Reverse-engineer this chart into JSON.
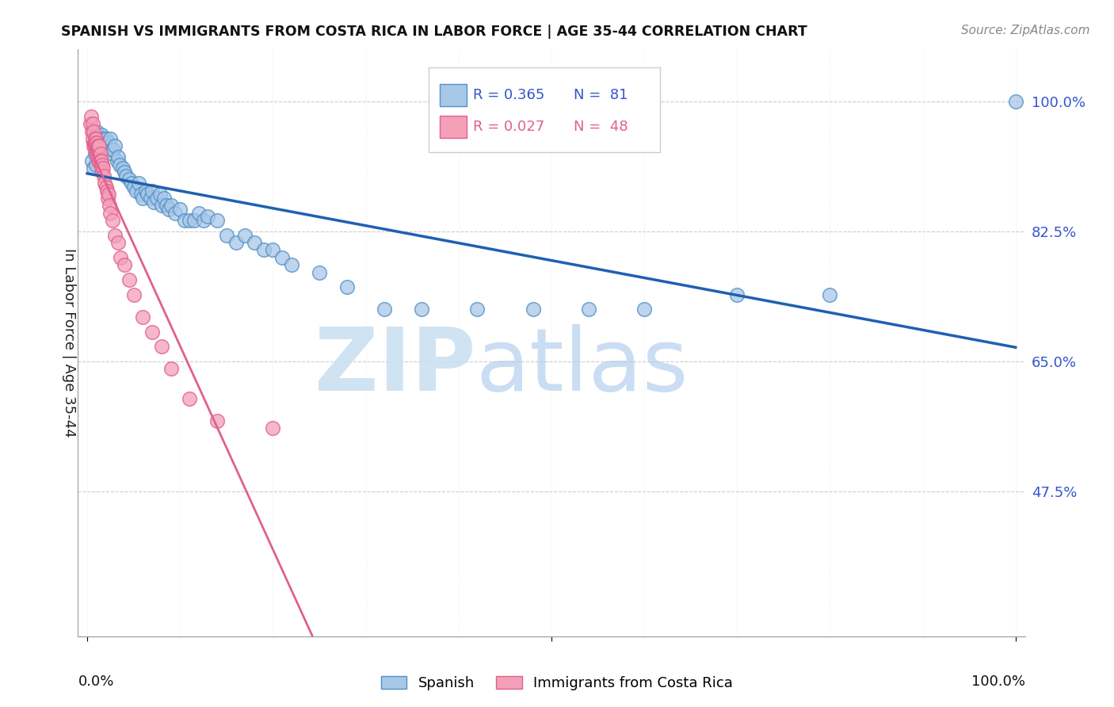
{
  "title": "SPANISH VS IMMIGRANTS FROM COSTA RICA IN LABOR FORCE | AGE 35-44 CORRELATION CHART",
  "source": "Source: ZipAtlas.com",
  "ylabel": "In Labor Force | Age 35-44",
  "ytick_values": [
    1.0,
    0.825,
    0.65,
    0.475
  ],
  "ytick_labels": [
    "100.0%",
    "82.5%",
    "65.0%",
    "47.5%"
  ],
  "xlim": [
    -0.01,
    1.01
  ],
  "ylim": [
    0.28,
    1.07
  ],
  "legend_r1": "R = 0.365",
  "legend_n1": "N =  81",
  "legend_r2": "R = 0.027",
  "legend_n2": "N =  48",
  "color_blue": "#a8c8e8",
  "color_pink": "#f4a0b8",
  "edge_blue": "#5090c8",
  "edge_pink": "#e06090",
  "trendline_blue_color": "#2060b0",
  "trendline_pink_color": "#e06090",
  "watermark_zip_color": "#c8dff0",
  "watermark_atlas_color": "#b0ccec",
  "blue_x": [
    0.005,
    0.007,
    0.008,
    0.009,
    0.01,
    0.01,
    0.011,
    0.012,
    0.012,
    0.013,
    0.014,
    0.015,
    0.015,
    0.016,
    0.016,
    0.017,
    0.018,
    0.019,
    0.02,
    0.021,
    0.022,
    0.023,
    0.024,
    0.025,
    0.026,
    0.027,
    0.028,
    0.03,
    0.032,
    0.033,
    0.035,
    0.038,
    0.04,
    0.042,
    0.045,
    0.048,
    0.05,
    0.053,
    0.055,
    0.058,
    0.06,
    0.063,
    0.065,
    0.068,
    0.07,
    0.072,
    0.075,
    0.078,
    0.08,
    0.083,
    0.085,
    0.088,
    0.09,
    0.095,
    0.1,
    0.105,
    0.11,
    0.115,
    0.12,
    0.125,
    0.13,
    0.14,
    0.15,
    0.16,
    0.17,
    0.18,
    0.19,
    0.2,
    0.21,
    0.22,
    0.25,
    0.28,
    0.32,
    0.36,
    0.42,
    0.48,
    0.54,
    0.6,
    0.7,
    0.8,
    1.0
  ],
  "blue_y": [
    0.92,
    0.91,
    0.93,
    0.915,
    0.95,
    0.96,
    0.945,
    0.94,
    0.95,
    0.94,
    0.945,
    0.955,
    0.94,
    0.95,
    0.935,
    0.945,
    0.95,
    0.94,
    0.95,
    0.94,
    0.935,
    0.945,
    0.94,
    0.95,
    0.935,
    0.93,
    0.935,
    0.94,
    0.92,
    0.925,
    0.915,
    0.91,
    0.905,
    0.9,
    0.895,
    0.89,
    0.885,
    0.88,
    0.89,
    0.875,
    0.87,
    0.88,
    0.875,
    0.87,
    0.88,
    0.865,
    0.87,
    0.875,
    0.86,
    0.87,
    0.86,
    0.855,
    0.86,
    0.85,
    0.855,
    0.84,
    0.84,
    0.84,
    0.85,
    0.84,
    0.845,
    0.84,
    0.82,
    0.81,
    0.82,
    0.81,
    0.8,
    0.8,
    0.79,
    0.78,
    0.77,
    0.75,
    0.72,
    0.72,
    0.72,
    0.72,
    0.72,
    0.72,
    0.74,
    0.74,
    1.0
  ],
  "pink_x": [
    0.003,
    0.004,
    0.005,
    0.006,
    0.006,
    0.007,
    0.007,
    0.008,
    0.008,
    0.009,
    0.009,
    0.01,
    0.01,
    0.011,
    0.011,
    0.012,
    0.012,
    0.013,
    0.013,
    0.014,
    0.014,
    0.015,
    0.015,
    0.016,
    0.016,
    0.017,
    0.018,
    0.019,
    0.02,
    0.021,
    0.022,
    0.023,
    0.024,
    0.025,
    0.027,
    0.03,
    0.033,
    0.036,
    0.04,
    0.045,
    0.05,
    0.06,
    0.07,
    0.08,
    0.09,
    0.11,
    0.14,
    0.2
  ],
  "pink_y": [
    0.97,
    0.98,
    0.96,
    0.97,
    0.95,
    0.96,
    0.94,
    0.95,
    0.935,
    0.95,
    0.945,
    0.945,
    0.93,
    0.94,
    0.925,
    0.94,
    0.92,
    0.94,
    0.92,
    0.93,
    0.92,
    0.92,
    0.91,
    0.915,
    0.905,
    0.91,
    0.9,
    0.89,
    0.885,
    0.88,
    0.87,
    0.875,
    0.86,
    0.85,
    0.84,
    0.82,
    0.81,
    0.79,
    0.78,
    0.76,
    0.74,
    0.71,
    0.69,
    0.67,
    0.64,
    0.6,
    0.57,
    0.56
  ]
}
